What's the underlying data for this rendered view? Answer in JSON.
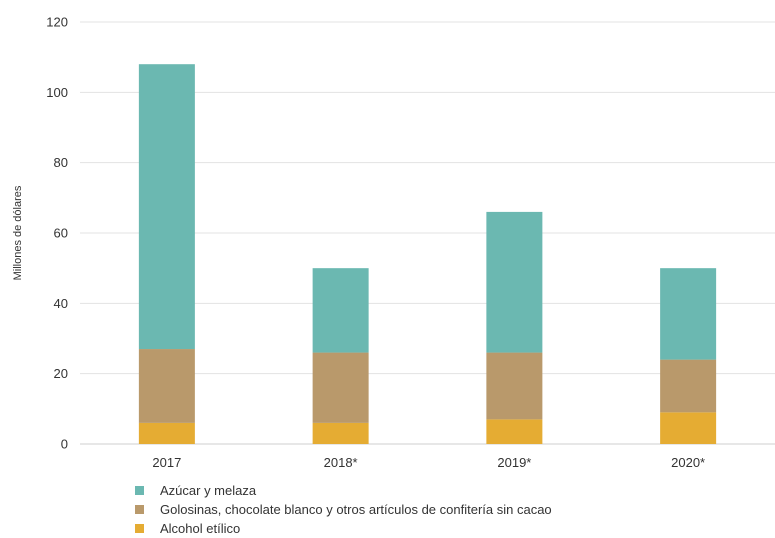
{
  "chart_data": {
    "type": "bar",
    "stacked": true,
    "categories": [
      "2017",
      "2018*",
      "2019*",
      "2020*"
    ],
    "series": [
      {
        "name": "Alcohol etílico",
        "color": "#e5ac33",
        "values": [
          6,
          6,
          7,
          9
        ]
      },
      {
        "name": "Golosinas, chocolate blanco y otros artículos de confitería sin cacao",
        "color": "#b9996b",
        "values": [
          21,
          20,
          19,
          15
        ]
      },
      {
        "name": "Azúcar y melaza",
        "color": "#6bb8b1",
        "values": [
          81,
          24,
          40,
          26
        ]
      }
    ],
    "ylabel": "Millones de dólares",
    "xlabel": "",
    "ylim": [
      0,
      120
    ],
    "yticks": [
      0,
      20,
      40,
      60,
      80,
      100,
      120
    ],
    "grid": true,
    "legend_position": "bottom-left",
    "legend_order": [
      "Azúcar y melaza",
      "Golosinas, chocolate blanco y otros artículos de confitería sin cacao",
      "Alcohol etílico"
    ]
  }
}
